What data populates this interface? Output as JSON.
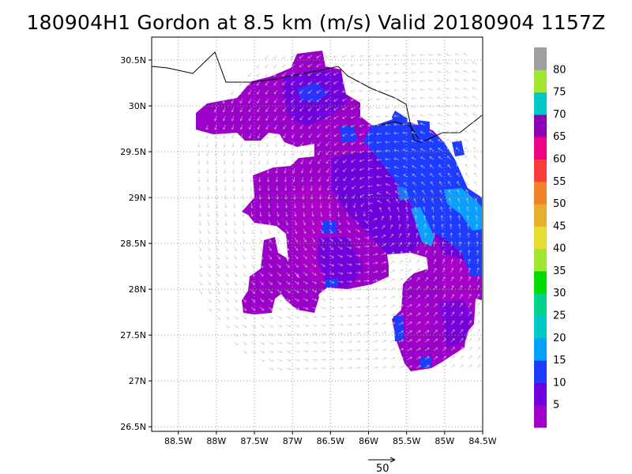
{
  "title": "180904H1 Gordon at 8.5 km (m/s) Valid 20180904 1157Z",
  "map": {
    "lon_range": [
      -88.85,
      -84.5
    ],
    "lat_range": [
      26.45,
      30.75
    ],
    "lat_ticks": [
      {
        "value": 30.5,
        "label": "30.5N"
      },
      {
        "value": 30.0,
        "label": "30N"
      },
      {
        "value": 29.5,
        "label": "29.5N"
      },
      {
        "value": 29.0,
        "label": "29N"
      },
      {
        "value": 28.5,
        "label": "28.5N"
      },
      {
        "value": 28.0,
        "label": "28N"
      },
      {
        "value": 27.5,
        "label": "27.5N"
      },
      {
        "value": 27.0,
        "label": "27N"
      },
      {
        "value": 26.5,
        "label": "26.5N"
      }
    ],
    "lon_ticks": [
      {
        "value": -88.5,
        "label": "88.5W"
      },
      {
        "value": -88.0,
        "label": "88W"
      },
      {
        "value": -87.5,
        "label": "87.5W"
      },
      {
        "value": -87.0,
        "label": "87W"
      },
      {
        "value": -86.5,
        "label": "86.5W"
      },
      {
        "value": -86.0,
        "label": "86W"
      },
      {
        "value": -85.5,
        "label": "85.5W"
      },
      {
        "value": -85.0,
        "label": "85W"
      },
      {
        "value": -84.5,
        "label": "84.5W"
      }
    ],
    "grid": "dotted"
  },
  "colorbar": {
    "labels": [
      "5",
      "10",
      "15",
      "20",
      "25",
      "30",
      "35",
      "40",
      "45",
      "50",
      "55",
      "60",
      "65",
      "70",
      "75",
      "80"
    ],
    "colors": [
      "#a000c8",
      "#6e00dc",
      "#1e3cff",
      "#00a0ff",
      "#00c8c8",
      "#00d28c",
      "#00dc00",
      "#a0e632",
      "#e6dc32",
      "#e6af2d",
      "#f08228",
      "#fa3c3c",
      "#f00082",
      "#8c00b4",
      "#00c8c8",
      "#a0e632",
      "#a0a0a0"
    ]
  },
  "scale_arrow": {
    "label": "50"
  },
  "colors": {
    "purple": "#a000c8",
    "violet": "#6e00dc",
    "blue": "#1e3cff",
    "lightblue": "#00a0ff",
    "coast": "#000000"
  }
}
